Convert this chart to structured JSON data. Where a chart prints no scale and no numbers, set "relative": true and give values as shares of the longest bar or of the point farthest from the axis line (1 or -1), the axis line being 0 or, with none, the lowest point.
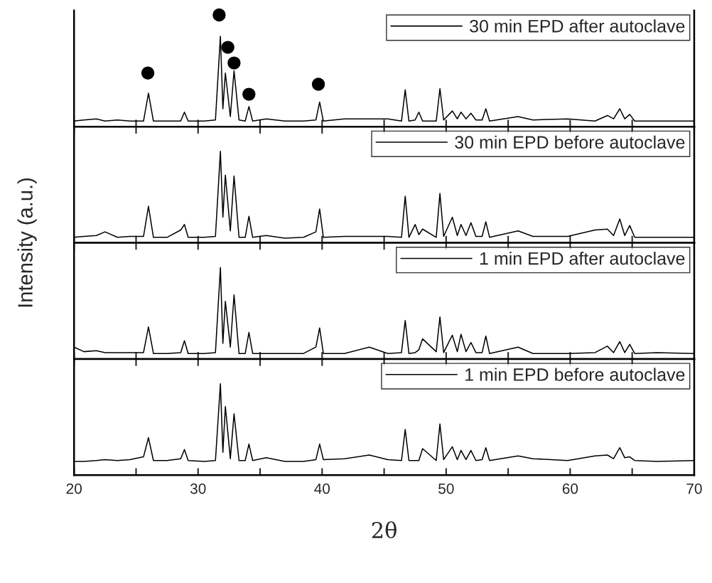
{
  "chart_data": [
    {
      "type": "line",
      "relative": true,
      "ylabel": "Intensity (a.u.)",
      "xlim": [
        20,
        70
      ],
      "xticks": [
        20,
        {
          "value": 25,
          "label": null
        },
        30,
        {
          "value": 35,
          "label": null
        },
        40,
        {
          "value": 45,
          "label": null
        },
        50,
        {
          "value": 55,
          "label": null
        },
        60,
        {
          "value": 65,
          "label": null
        },
        70
      ],
      "tick_labels": false,
      "legend": "top right",
      "grid": false,
      "x": [
        20,
        20.8,
        21.8,
        22.5,
        23.5,
        24.5,
        25.6,
        26.0,
        26.4,
        27.5,
        28.6,
        28.9,
        29.2,
        30.5,
        31.4,
        31.8,
        32.0,
        32.2,
        32.6,
        32.9,
        33.3,
        33.8,
        34.1,
        34.4,
        35.5,
        37,
        38.5,
        39.5,
        39.8,
        40.1,
        41.8,
        43.8,
        45.3,
        46.4,
        46.7,
        47.0,
        47.5,
        47.8,
        48.1,
        49.2,
        49.5,
        49.8,
        50.5,
        50.9,
        51.2,
        51.6,
        52.0,
        52.4,
        52.9,
        53.2,
        53.5,
        55.8,
        57,
        59.8,
        62,
        63,
        63.5,
        64,
        64.4,
        64.8,
        65.2,
        67,
        70
      ],
      "series": [
        {
          "name": "30 min EPD after autoclave",
          "color": "#000000",
          "marker": "none",
          "values": [
            0.05,
            0.06,
            0.07,
            0.05,
            0.06,
            0.05,
            0.05,
            0.3,
            0.05,
            0.05,
            0.05,
            0.13,
            0.05,
            0.05,
            0.06,
            0.81,
            0.16,
            0.48,
            0.09,
            0.5,
            0.06,
            0.05,
            0.18,
            0.05,
            0.07,
            0.05,
            0.05,
            0.06,
            0.22,
            0.05,
            0.07,
            0.07,
            0.07,
            0.05,
            0.33,
            0.05,
            0.06,
            0.13,
            0.05,
            0.05,
            0.34,
            0.06,
            0.14,
            0.07,
            0.13,
            0.07,
            0.12,
            0.06,
            0.06,
            0.16,
            0.05,
            0.09,
            0.06,
            0.07,
            0.05,
            0.1,
            0.07,
            0.16,
            0.07,
            0.11,
            0.05,
            0.05,
            0.05
          ]
        },
        {
          "type": "scatter",
          "color": "#000000",
          "marker": "circle",
          "x": [
            25.95,
            31.7,
            32.4,
            32.9,
            34.1,
            39.7
          ],
          "values": [
            0.48,
            1.0,
            0.71,
            0.57,
            0.29,
            0.38
          ]
        }
      ]
    },
    {
      "type": "line",
      "relative": true,
      "xlim": [
        20,
        70
      ],
      "xticks": [
        20,
        {
          "value": 25,
          "label": null
        },
        30,
        {
          "value": 35,
          "label": null
        },
        40,
        {
          "value": 45,
          "label": null
        },
        50,
        {
          "value": 55,
          "label": null
        },
        60,
        {
          "value": 65,
          "label": null
        },
        70
      ],
      "tick_labels": false,
      "legend": "top right",
      "grid": false,
      "x": [
        20,
        20.8,
        21.8,
        22.5,
        23.5,
        24.5,
        25.6,
        26.0,
        26.4,
        27.5,
        28.6,
        28.9,
        29.2,
        30.5,
        31.4,
        31.8,
        32.0,
        32.2,
        32.6,
        32.9,
        33.3,
        33.8,
        34.1,
        34.4,
        35.5,
        37,
        38.5,
        39.5,
        39.8,
        40.1,
        41.8,
        43.8,
        45.3,
        46.4,
        46.7,
        47.0,
        47.5,
        47.8,
        48.1,
        49.2,
        49.5,
        49.8,
        50.5,
        50.9,
        51.2,
        51.6,
        52.0,
        52.4,
        52.9,
        53.2,
        53.5,
        55.8,
        57,
        59.8,
        62,
        63,
        63.5,
        64,
        64.4,
        64.8,
        65.2,
        67,
        70
      ],
      "series": [
        {
          "name": "30 min EPD before autoclave",
          "color": "#000000",
          "marker": "none",
          "values": [
            0.06,
            0.07,
            0.08,
            0.12,
            0.06,
            0.07,
            0.07,
            0.4,
            0.06,
            0.06,
            0.14,
            0.2,
            0.06,
            0.06,
            0.07,
            1.0,
            0.28,
            0.74,
            0.13,
            0.73,
            0.06,
            0.06,
            0.29,
            0.06,
            0.08,
            0.05,
            0.06,
            0.12,
            0.37,
            0.06,
            0.07,
            0.07,
            0.07,
            0.06,
            0.51,
            0.06,
            0.2,
            0.09,
            0.15,
            0.06,
            0.54,
            0.07,
            0.28,
            0.08,
            0.2,
            0.08,
            0.22,
            0.07,
            0.07,
            0.23,
            0.06,
            0.13,
            0.07,
            0.07,
            0.14,
            0.15,
            0.08,
            0.26,
            0.08,
            0.19,
            0.06,
            0.06,
            0.06
          ]
        }
      ]
    },
    {
      "type": "line",
      "relative": true,
      "xlim": [
        20,
        70
      ],
      "xticks": [
        20,
        {
          "value": 25,
          "label": null
        },
        30,
        {
          "value": 35,
          "label": null
        },
        40,
        {
          "value": 45,
          "label": null
        },
        50,
        {
          "value": 55,
          "label": null
        },
        60,
        {
          "value": 65,
          "label": null
        },
        70
      ],
      "tick_labels": false,
      "legend": "top right",
      "grid": false,
      "x": [
        20,
        20.8,
        21.8,
        22.5,
        23.5,
        24.5,
        25.6,
        26.0,
        26.4,
        27.5,
        28.6,
        28.9,
        29.2,
        30.5,
        31.4,
        31.8,
        32.0,
        32.2,
        32.6,
        32.9,
        33.3,
        33.8,
        34.1,
        34.4,
        35.5,
        37,
        38.5,
        39.5,
        39.8,
        40.1,
        41.8,
        43.8,
        45.3,
        46.4,
        46.7,
        47.0,
        47.5,
        47.8,
        48.1,
        49.2,
        49.5,
        49.8,
        50.5,
        50.9,
        51.2,
        51.6,
        52.0,
        52.4,
        52.9,
        53.2,
        53.5,
        55.8,
        57,
        59.8,
        62,
        63,
        63.5,
        64,
        64.4,
        64.8,
        65.2,
        67,
        70
      ],
      "series": [
        {
          "name": "1 min EPD after autoclave",
          "color": "#000000",
          "marker": "none",
          "values": [
            0.13,
            0.08,
            0.09,
            0.07,
            0.07,
            0.07,
            0.07,
            0.35,
            0.06,
            0.06,
            0.07,
            0.2,
            0.06,
            0.06,
            0.07,
            1.0,
            0.17,
            0.63,
            0.13,
            0.7,
            0.06,
            0.06,
            0.29,
            0.06,
            0.06,
            0.06,
            0.06,
            0.13,
            0.34,
            0.06,
            0.06,
            0.13,
            0.06,
            0.07,
            0.42,
            0.06,
            0.07,
            0.1,
            0.22,
            0.08,
            0.46,
            0.07,
            0.26,
            0.08,
            0.27,
            0.08,
            0.18,
            0.07,
            0.07,
            0.25,
            0.06,
            0.13,
            0.06,
            0.06,
            0.07,
            0.14,
            0.07,
            0.19,
            0.07,
            0.16,
            0.06,
            0.07,
            0.06
          ]
        }
      ]
    },
    {
      "type": "line",
      "relative": true,
      "xlabel": "2θ",
      "xlim": [
        20,
        70
      ],
      "xticks": [
        20,
        {
          "value": 25,
          "label": null
        },
        30,
        {
          "value": 35,
          "label": null
        },
        40,
        {
          "value": 45,
          "label": null
        },
        50,
        {
          "value": 55,
          "label": null
        },
        60,
        {
          "value": 65,
          "label": null
        },
        70
      ],
      "tick_labels": "x",
      "legend": "top right",
      "grid": false,
      "x": [
        20,
        20.8,
        21.8,
        22.5,
        23.5,
        24.5,
        25.6,
        26.0,
        26.4,
        27.5,
        28.6,
        28.9,
        29.2,
        30.5,
        31.4,
        31.8,
        32.0,
        32.2,
        32.6,
        32.9,
        33.3,
        33.8,
        34.1,
        34.4,
        35.5,
        37,
        38.5,
        39.5,
        39.8,
        40.1,
        41.8,
        43.8,
        45.3,
        46.4,
        46.7,
        47.0,
        47.5,
        47.8,
        48.1,
        49.2,
        49.5,
        49.8,
        50.5,
        50.9,
        51.2,
        51.6,
        52.0,
        52.4,
        52.9,
        53.2,
        53.5,
        55.8,
        57,
        59.8,
        62,
        63,
        63.5,
        64,
        64.4,
        64.8,
        65.2,
        67,
        70
      ],
      "series": [
        {
          "name": "1 min EPD before autoclave",
          "color": "#000000",
          "marker": "none",
          "values": [
            0.15,
            0.15,
            0.16,
            0.17,
            0.16,
            0.17,
            0.2,
            0.41,
            0.16,
            0.16,
            0.18,
            0.28,
            0.16,
            0.15,
            0.16,
            1.0,
            0.25,
            0.75,
            0.18,
            0.67,
            0.16,
            0.16,
            0.34,
            0.16,
            0.19,
            0.15,
            0.15,
            0.17,
            0.34,
            0.17,
            0.18,
            0.22,
            0.17,
            0.16,
            0.5,
            0.16,
            0.16,
            0.16,
            0.29,
            0.16,
            0.56,
            0.17,
            0.31,
            0.17,
            0.27,
            0.17,
            0.27,
            0.16,
            0.17,
            0.3,
            0.16,
            0.21,
            0.18,
            0.16,
            0.21,
            0.22,
            0.18,
            0.3,
            0.19,
            0.2,
            0.16,
            0.15,
            0.16
          ]
        }
      ]
    }
  ]
}
